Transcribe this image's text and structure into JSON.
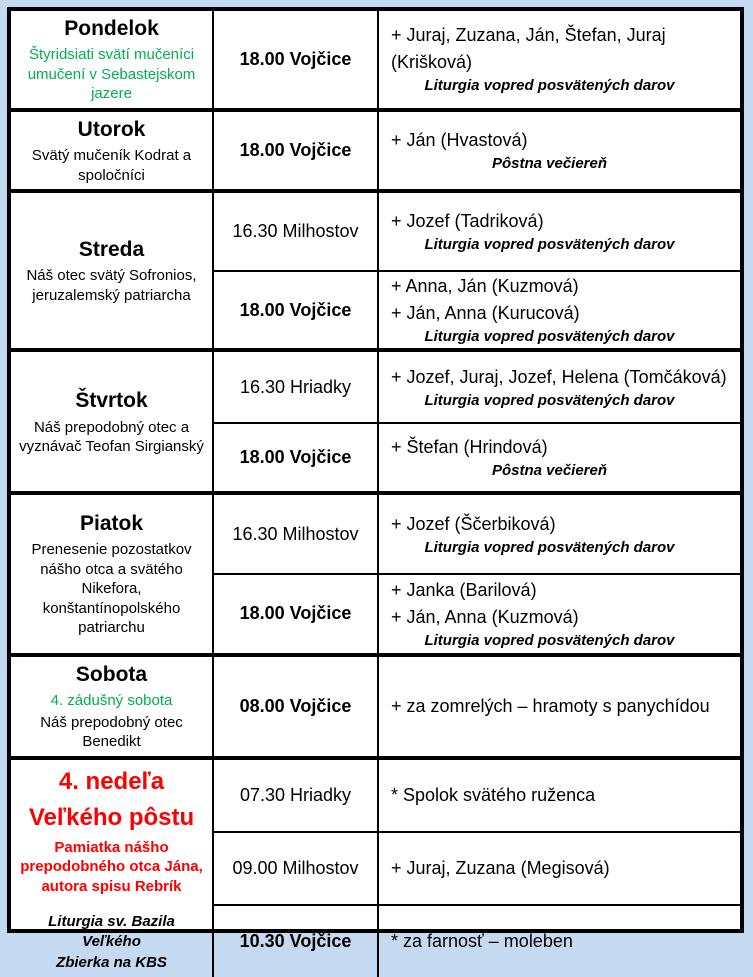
{
  "colors": {
    "green": "#00b050",
    "red": "#fe0000",
    "border": "#000000",
    "page_background": "#c5d9f1"
  },
  "table": {
    "days": [
      {
        "name": "Pondelok",
        "feast_green": "Štyridsiati svätí mučeníci umučení v Sebastejskom jazere",
        "feast_black": "",
        "services": [
          {
            "time": "18.00 Vojčice",
            "lines": [
              "+ Juraj, Zuzana, Ján, Štefan, Juraj (Krišková)"
            ],
            "note": "Liturgia vopred posvätených darov"
          }
        ]
      },
      {
        "name": "Utorok",
        "feast_black": "Svätý mučeník Kodrat a spoločníci",
        "services": [
          {
            "time": "18.00 Vojčice",
            "lines": [
              "+ Ján (Hvastová)"
            ],
            "note": "Pôstna večiereň"
          }
        ]
      },
      {
        "name": "Streda",
        "feast_black": "Náš otec svätý Sofronios, jeruzalemský patriarcha",
        "services": [
          {
            "time": "16.30 Milhostov",
            "lines": [
              "+ Jozef (Tadriková)"
            ],
            "note": "Liturgia vopred posvätených darov"
          },
          {
            "time": "18.00 Vojčice",
            "lines": [
              "+ Anna, Ján (Kuzmová)",
              "+ Ján, Anna (Kurucová)"
            ],
            "note": "Liturgia vopred posvätených darov"
          }
        ]
      },
      {
        "name": "Štvrtok",
        "feast_black": "Náš prepodobný otec a vyznávač Teofan Sirgianský",
        "services": [
          {
            "time": "16.30 Hriadky",
            "lines": [
              "+ Jozef, Juraj, Jozef, Helena (Tomčáková)"
            ],
            "note": "Liturgia vopred posvätených darov"
          },
          {
            "time": "18.00 Vojčice",
            "lines": [
              "+ Štefan (Hrindová)"
            ],
            "note": "Pôstna večiereň"
          }
        ]
      },
      {
        "name": "Piatok",
        "feast_black": "Prenesenie pozostatkov nášho otca a svätého Nikefora, konštantínopolského patriarchu",
        "services": [
          {
            "time": "16.30 Milhostov",
            "lines": [
              "+ Jozef (Ščerbiková)"
            ],
            "note": "Liturgia vopred posvätených darov"
          },
          {
            "time": "18.00 Vojčice",
            "lines": [
              "+ Janka (Barilová)",
              "+ Ján, Anna (Kuzmová)"
            ],
            "note": "Liturgia vopred posvätených darov"
          }
        ]
      },
      {
        "name": "Sobota",
        "feast_green": "4. zádušný sobota",
        "feast_black": "Náš prepodobný otec Benedikt",
        "services": [
          {
            "time": "08.00 Vojčice",
            "lines": [
              "+ za zomrelých – hramoty s panychídou"
            ],
            "note": ""
          }
        ]
      },
      {
        "name": "4. nedeľa Veľkého pôstu",
        "feast_red": "Pamiatka nášho prepodobného otca Jána, autora spisu Rebrík",
        "liturgy_note_line1": "Liturgia sv. Bazila Veľkého",
        "liturgy_note_line2": "Zbierka na KBS",
        "services": [
          {
            "time": "07.30 Hriadky",
            "lines": [
              "* Spolok svätého ruženca"
            ],
            "note": ""
          },
          {
            "time": "09.00 Milhostov",
            "lines": [
              "+ Juraj, Zuzana (Megisová)"
            ],
            "note": ""
          },
          {
            "time": "10.30 Vojčice",
            "lines": [
              "* za farnosť – moleben"
            ],
            "note": ""
          }
        ]
      }
    ]
  }
}
